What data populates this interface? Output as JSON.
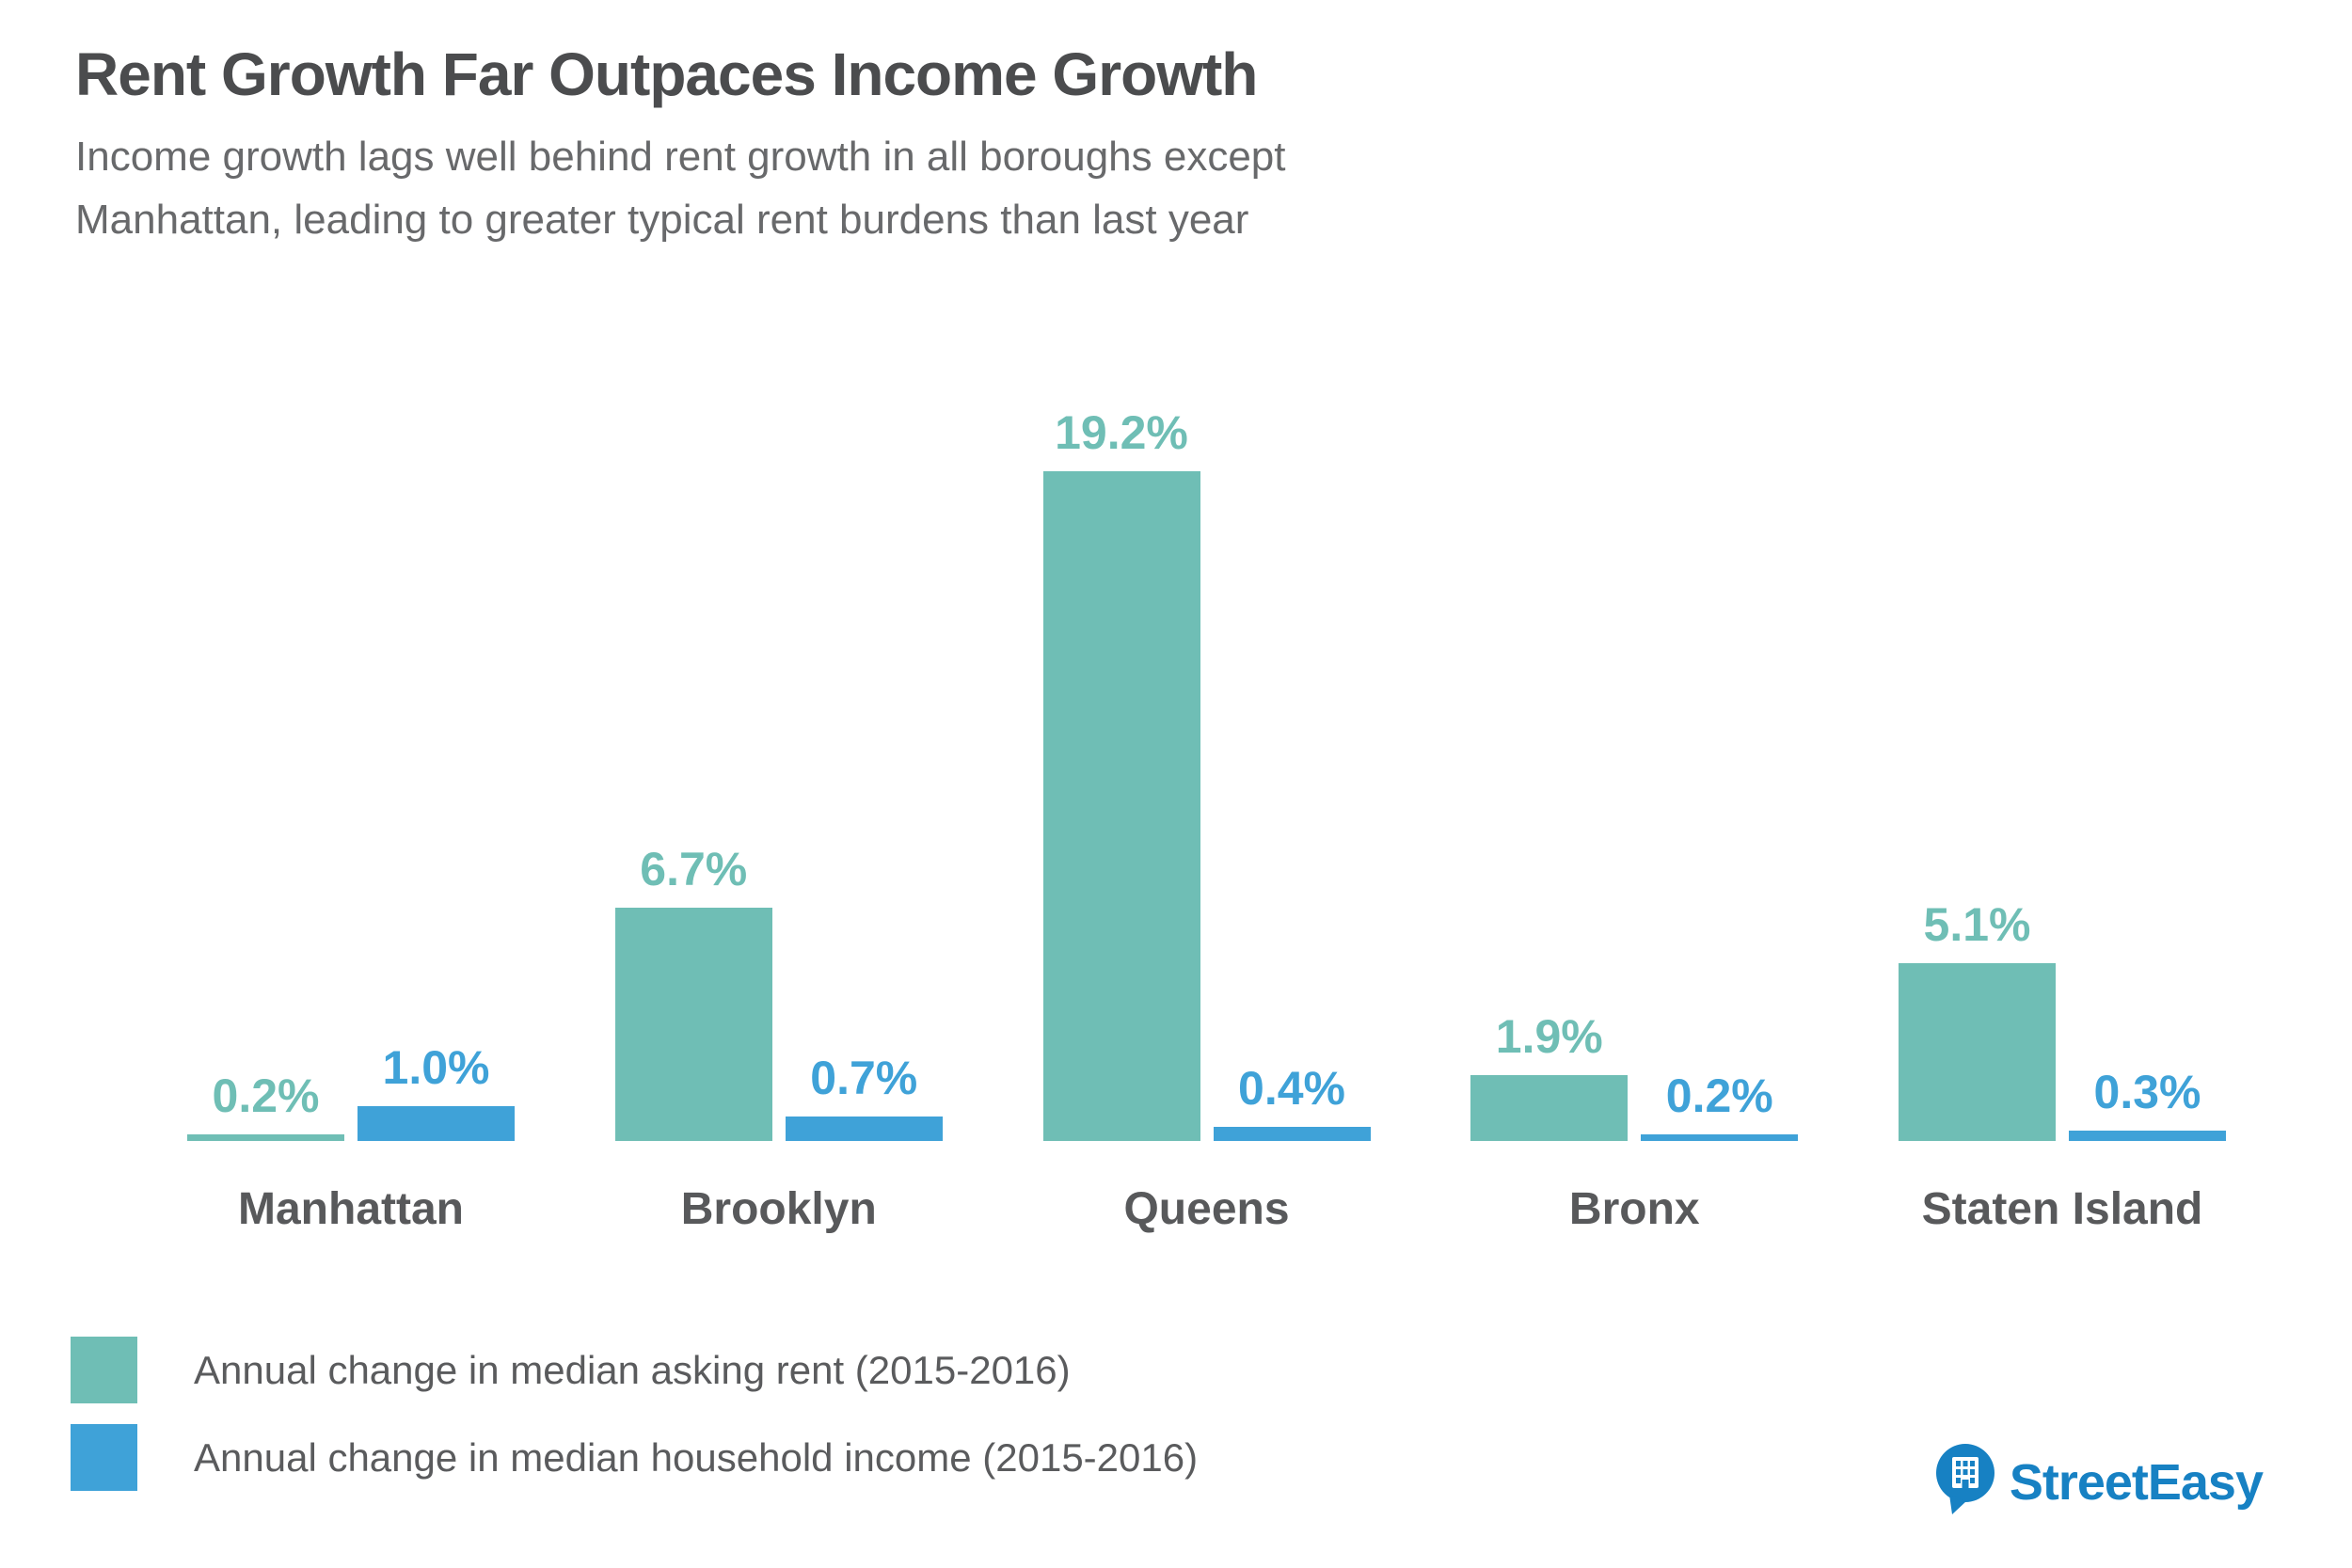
{
  "header": {
    "title": "Rent Growth Far Outpaces Income Growth",
    "subtitle_line1": "Income growth lags well behind rent growth in all boroughs except",
    "subtitle_line2": "Manhattan, leading to greater typical rent burdens than last year"
  },
  "chart_data": {
    "type": "bar",
    "title": "Rent Growth Far Outpaces Income Growth",
    "categories": [
      "Manhattan",
      "Brooklyn",
      "Queens",
      "Bronx",
      "Staten Island"
    ],
    "series": [
      {
        "name": "Annual change in median asking rent (2015-2016)",
        "color": "#6fbeb5",
        "values": [
          0.2,
          6.7,
          19.2,
          1.9,
          5.1
        ],
        "labels": [
          "0.2%",
          "6.7%",
          "19.2%",
          "1.9%",
          "5.1%"
        ]
      },
      {
        "name": "Annual change in median household income (2015-2016)",
        "color": "#3fa2d8",
        "values": [
          1.0,
          0.7,
          0.4,
          0.2,
          0.3
        ],
        "labels": [
          "1.0%",
          "0.7%",
          "0.4%",
          "0.2%",
          "0.3%"
        ]
      }
    ],
    "value_suffix": "%",
    "ylim": [
      0,
      19.2
    ],
    "grid": false,
    "axis_lines": false,
    "value_labels": "above-bars",
    "legend_position": "bottom-left"
  },
  "footer": {
    "brand": "StreetEasy",
    "brand_color": "#1781c3"
  }
}
